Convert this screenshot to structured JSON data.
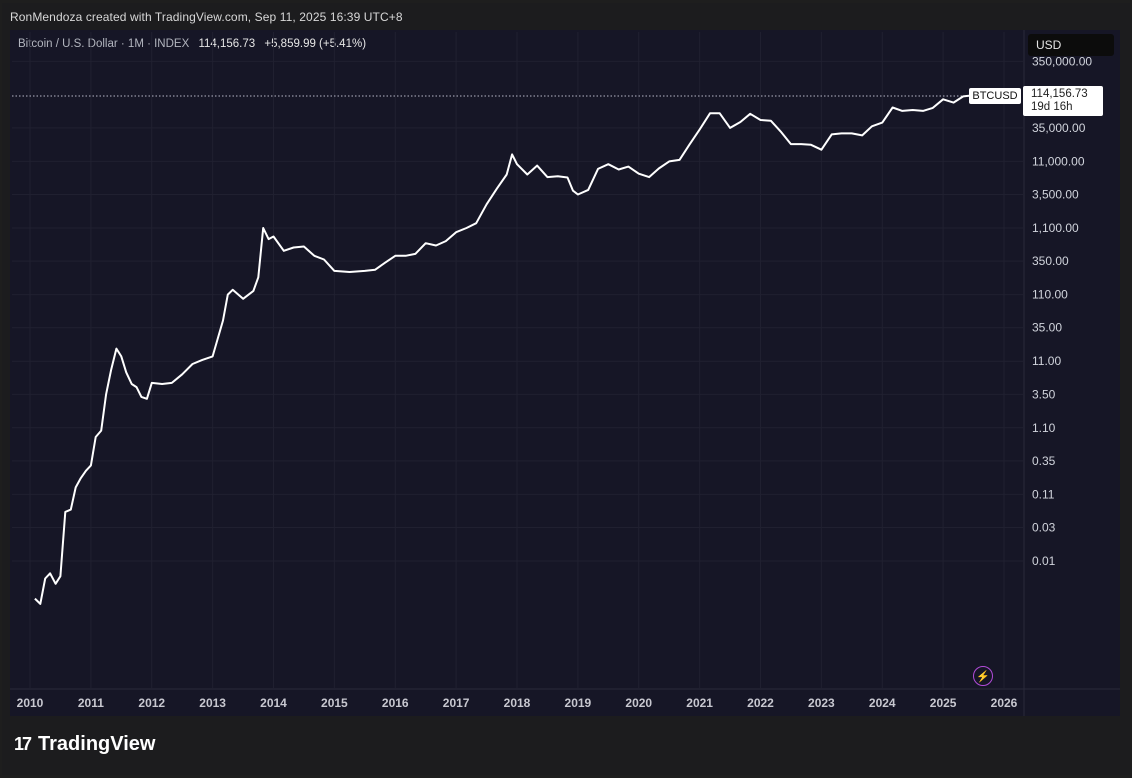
{
  "header": {
    "caption": "RonMendoza created with TradingView.com, Sep 11, 2025 16:39 UTC+8"
  },
  "legend": {
    "symbol_text": "Bitcoin / U.S. Dollar · 1M · INDEX",
    "price": "114,156.73",
    "change": "+5,859.99 (+5.41%)"
  },
  "toolbar": {
    "currency_label": "USD"
  },
  "price_tag": {
    "symbol": "BTCUSD",
    "price": "114,156.73",
    "countdown": "19d 16h"
  },
  "brand": {
    "logo_glyph": "17",
    "name": "TradingView"
  },
  "icons": {
    "bolt": "lightning-icon"
  },
  "colors": {
    "line": "#ffffff",
    "background": "#161626",
    "accent": "#b14bd8"
  },
  "chart_data": {
    "type": "line",
    "scale": "log",
    "grid": true,
    "title": "",
    "xlabel": "",
    "ylabel": "",
    "x_tick_labels": [
      "2010",
      "2011",
      "2012",
      "2013",
      "2014",
      "2015",
      "2016",
      "2017",
      "2018",
      "2019",
      "2020",
      "2021",
      "2022",
      "2023",
      "2024",
      "2025",
      "2026"
    ],
    "y_tick_labels": [
      {
        "label": "350,000.00",
        "value": 350000
      },
      {
        "label": "35,000.00",
        "value": 35000
      },
      {
        "label": "11,000.00",
        "value": 11000
      },
      {
        "label": "3,500.00",
        "value": 3500
      },
      {
        "label": "1,100.00",
        "value": 1100
      },
      {
        "label": "350.00",
        "value": 350
      },
      {
        "label": "110.00",
        "value": 110
      },
      {
        "label": "35.00",
        "value": 35
      },
      {
        "label": "11.00",
        "value": 11
      },
      {
        "label": "3.50",
        "value": 3.5
      },
      {
        "label": "1.10",
        "value": 1.1
      },
      {
        "label": "0.35",
        "value": 0.35
      },
      {
        "label": "0.11",
        "value": 0.11
      },
      {
        "label": "0.03",
        "value": 0.035
      },
      {
        "label": "0.01",
        "value": 0.011
      }
    ],
    "series": [
      {
        "x": [
          2010.08,
          2010.17,
          2010.25,
          2010.33,
          2010.42,
          2010.5,
          2010.58,
          2010.67,
          2010.75,
          2010.83,
          2010.92,
          2011.0,
          2011.08,
          2011.17,
          2011.25,
          2011.33,
          2011.42,
          2011.5,
          2011.58,
          2011.67,
          2011.75,
          2011.83,
          2011.92,
          2012.0,
          2012.17,
          2012.33,
          2012.5,
          2012.67,
          2012.83,
          2013.0,
          2013.17,
          2013.25,
          2013.33,
          2013.5,
          2013.67,
          2013.75,
          2013.83,
          2013.92,
          2014.0,
          2014.17,
          2014.33,
          2014.5,
          2014.67,
          2014.83,
          2015.0,
          2015.25,
          2015.5,
          2015.67,
          2015.83,
          2016.0,
          2016.17,
          2016.33,
          2016.5,
          2016.67,
          2016.83,
          2017.0,
          2017.17,
          2017.33,
          2017.5,
          2017.67,
          2017.83,
          2017.92,
          2018.0,
          2018.17,
          2018.33,
          2018.5,
          2018.67,
          2018.83,
          2018.92,
          2019.0,
          2019.17,
          2019.33,
          2019.5,
          2019.67,
          2019.83,
          2020.0,
          2020.17,
          2020.33,
          2020.5,
          2020.67,
          2020.83,
          2021.0,
          2021.17,
          2021.33,
          2021.5,
          2021.67,
          2021.83,
          2022.0,
          2022.17,
          2022.33,
          2022.5,
          2022.67,
          2022.83,
          2023.0,
          2023.17,
          2023.33,
          2023.5,
          2023.67,
          2023.83,
          2024.0,
          2024.17,
          2024.33,
          2024.5,
          2024.67,
          2024.83,
          2025.0,
          2025.17,
          2025.33,
          2025.5,
          2025.67
        ],
        "y": [
          0.003,
          0.0025,
          0.006,
          0.0072,
          0.005,
          0.0065,
          0.06,
          0.065,
          0.14,
          0.19,
          0.25,
          0.3,
          0.8,
          1.0,
          3.5,
          8.0,
          17.0,
          13.0,
          7.5,
          5.0,
          4.5,
          3.2,
          3.0,
          5.2,
          5.0,
          5.2,
          7.0,
          10.0,
          11.5,
          13.0,
          45.0,
          110.0,
          130.0,
          95.0,
          125.0,
          200.0,
          1100.0,
          750.0,
          820.0,
          500.0,
          560.0,
          580.0,
          420.0,
          370.0,
          250.0,
          240.0,
          250.0,
          260.0,
          330.0,
          420.0,
          420.0,
          450.0,
          650.0,
          600.0,
          700.0,
          950.0,
          1100.0,
          1300.0,
          2500.0,
          4300.0,
          7000.0,
          14000.0,
          10000.0,
          7000.0,
          9500.0,
          6400.0,
          6600.0,
          6300.0,
          4000.0,
          3500.0,
          4100.0,
          8500.0,
          10000.0,
          8300.0,
          9200.0,
          7200.0,
          6400.0,
          8600.0,
          11000.0,
          11600.0,
          19500.0,
          33000.0,
          58000.0,
          58000.0,
          35000.0,
          43000.0,
          57000.0,
          46000.0,
          45000.0,
          31000.0,
          20000.0,
          20000.0,
          19500.0,
          16500.0,
          28000.0,
          29000.0,
          29000.0,
          27000.0,
          37000.0,
          42000.0,
          71000.0,
          63000.0,
          65000.0,
          63000.0,
          70000.0,
          94000.0,
          84000.0,
          104000.0,
          108000.0,
          114156.73
        ]
      }
    ]
  }
}
